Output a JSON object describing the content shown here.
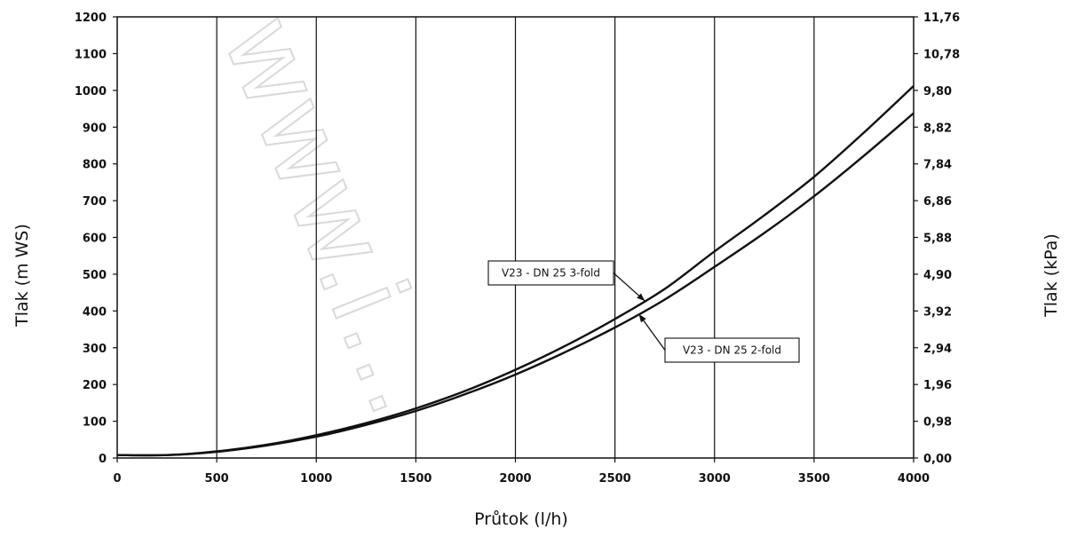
{
  "chart_data": {
    "type": "line",
    "xlabel": "Průtok (l/h)",
    "ylabel": "Tlak (m WS)",
    "ylabel_right": "Tlak (kPa)",
    "xlim": [
      0,
      4000
    ],
    "ylim": [
      0,
      1200
    ],
    "x_ticks": [
      "0",
      "500",
      "1000",
      "1500",
      "2000",
      "2500",
      "3000",
      "3500",
      "4000"
    ],
    "y_ticks": [
      "0",
      "100",
      "200",
      "300",
      "400",
      "500",
      "600",
      "700",
      "800",
      "900",
      "1000",
      "1100",
      "1200"
    ],
    "y_right_ticks": [
      "0,00",
      "0,98",
      "1,96",
      "2,94",
      "3,92",
      "4,90",
      "5,88",
      "6,86",
      "7,84",
      "8,82",
      "9,80",
      "10,78",
      "11,76"
    ],
    "grid": "vertical",
    "watermark": "www.i...",
    "series": [
      {
        "name": "V23 - DN 25 3-fold",
        "x": [
          0,
          250,
          500,
          750,
          1000,
          1250,
          1500,
          1750,
          2000,
          2250,
          2500,
          2750,
          3000,
          3250,
          3500,
          3750,
          4000
        ],
        "values": [
          8,
          8,
          18,
          36,
          62,
          95,
          135,
          183,
          240,
          305,
          378,
          460,
          562,
          660,
          765,
          885,
          1012
        ]
      },
      {
        "name": "V23 - DN 25 2-fold",
        "x": [
          0,
          250,
          500,
          750,
          1000,
          1250,
          1500,
          1750,
          2000,
          2250,
          2500,
          2750,
          3000,
          3250,
          3500,
          3750,
          4000
        ],
        "values": [
          8,
          8,
          17,
          34,
          58,
          90,
          128,
          174,
          227,
          288,
          355,
          431,
          520,
          612,
          712,
          822,
          938
        ]
      }
    ],
    "annotations": [
      {
        "text": "V23 - DN 25 3-fold",
        "series": 0,
        "points_to_x": 2650
      },
      {
        "text": "V23 - DN 25 2-fold",
        "series": 1,
        "points_to_x": 2620
      }
    ]
  }
}
